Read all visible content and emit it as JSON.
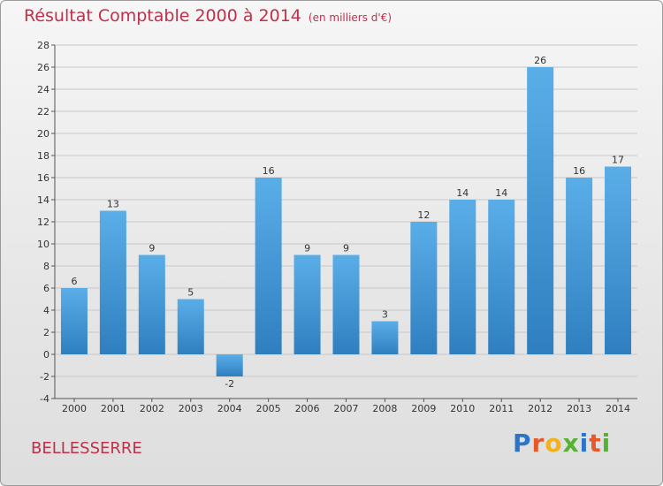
{
  "title": "Résultat Comptable 2000 à 2014",
  "subtitle": "(en milliers d'€)",
  "place": "BELLESSERRE",
  "logo": {
    "text": "Proxiti",
    "letters": [
      "P",
      "r",
      "o",
      "x",
      "i",
      "t",
      "i"
    ],
    "colors": [
      "#2b74c7",
      "#e8592a",
      "#f2b21b",
      "#55b233",
      "#2b74c7",
      "#e8592a",
      "#55b233"
    ]
  },
  "colors": {
    "bar_light": "#5aaee8",
    "bar_dark": "#2f7fc0",
    "title": "#c0304a"
  },
  "chart_data": {
    "type": "bar",
    "categories": [
      "2000",
      "2001",
      "2002",
      "2003",
      "2004",
      "2005",
      "2006",
      "2007",
      "2008",
      "2009",
      "2010",
      "2011",
      "2012",
      "2013",
      "2014"
    ],
    "values": [
      6,
      13,
      9,
      5,
      -2,
      16,
      9,
      9,
      3,
      12,
      14,
      14,
      26,
      16,
      17
    ],
    "ylim": [
      -4,
      28
    ],
    "yticks": [
      -4,
      -2,
      0,
      2,
      4,
      6,
      8,
      10,
      12,
      14,
      16,
      18,
      20,
      22,
      24,
      26,
      28
    ],
    "grid": true,
    "title": "Résultat Comptable 2000 à 2014",
    "xlabel": "",
    "ylabel": ""
  }
}
